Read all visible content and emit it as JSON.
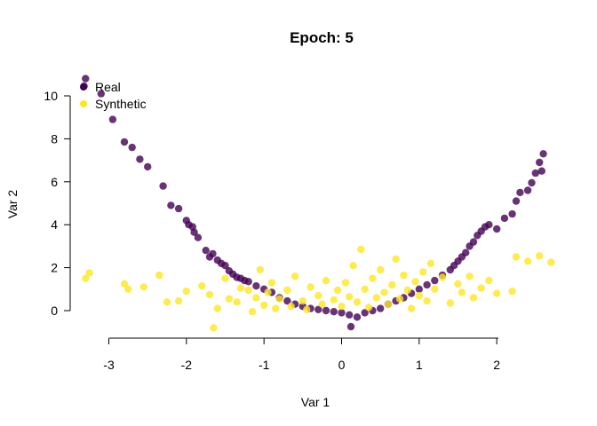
{
  "chart_data": {
    "type": "scatter",
    "title": "Epoch: 5",
    "xlabel": "Var 1",
    "ylabel": "Var 2",
    "xlim": [
      -3.35,
      2.75
    ],
    "ylim": [
      -1.15,
      10.85
    ],
    "x_ticks": [
      -3,
      -2,
      -1,
      0,
      1,
      2
    ],
    "y_ticks": [
      0,
      2,
      4,
      6,
      8,
      10
    ],
    "grid": false,
    "legend_position": "top-left",
    "series": [
      {
        "name": "Real",
        "color": "#440154",
        "points": [
          [
            -3.3,
            10.8
          ],
          [
            -3.32,
            10.45
          ],
          [
            -3.1,
            10.1
          ],
          [
            -2.95,
            8.9
          ],
          [
            -2.8,
            7.85
          ],
          [
            -2.7,
            7.6
          ],
          [
            -2.6,
            7.05
          ],
          [
            -2.5,
            6.7
          ],
          [
            -2.3,
            5.8
          ],
          [
            -2.2,
            4.9
          ],
          [
            -2.1,
            4.75
          ],
          [
            -2.0,
            4.2
          ],
          [
            -1.97,
            4.0
          ],
          [
            -1.92,
            3.9
          ],
          [
            -1.9,
            3.65
          ],
          [
            -1.85,
            3.4
          ],
          [
            -1.75,
            2.8
          ],
          [
            -1.7,
            2.5
          ],
          [
            -1.66,
            2.65
          ],
          [
            -1.6,
            2.35
          ],
          [
            -1.55,
            2.2
          ],
          [
            -1.5,
            2.1
          ],
          [
            -1.45,
            1.85
          ],
          [
            -1.4,
            1.7
          ],
          [
            -1.35,
            1.55
          ],
          [
            -1.3,
            1.5
          ],
          [
            -1.25,
            1.4
          ],
          [
            -1.2,
            1.35
          ],
          [
            -1.1,
            1.15
          ],
          [
            -1.0,
            1.0
          ],
          [
            -0.9,
            0.85
          ],
          [
            -0.8,
            0.6
          ],
          [
            -0.7,
            0.45
          ],
          [
            -0.6,
            0.3
          ],
          [
            -0.5,
            0.2
          ],
          [
            -0.4,
            0.1
          ],
          [
            -0.3,
            0.05
          ],
          [
            -0.2,
            0.0
          ],
          [
            -0.1,
            -0.05
          ],
          [
            0.0,
            -0.1
          ],
          [
            0.1,
            -0.2
          ],
          [
            0.12,
            -0.75
          ],
          [
            0.2,
            -0.3
          ],
          [
            0.3,
            -0.1
          ],
          [
            0.4,
            0.0
          ],
          [
            0.5,
            0.1
          ],
          [
            0.6,
            0.3
          ],
          [
            0.7,
            0.45
          ],
          [
            0.8,
            0.6
          ],
          [
            0.9,
            0.8
          ],
          [
            1.0,
            1.0
          ],
          [
            1.1,
            1.2
          ],
          [
            1.2,
            1.4
          ],
          [
            1.3,
            1.65
          ],
          [
            1.4,
            1.9
          ],
          [
            1.45,
            2.1
          ],
          [
            1.5,
            2.3
          ],
          [
            1.55,
            2.5
          ],
          [
            1.6,
            2.7
          ],
          [
            1.65,
            3.0
          ],
          [
            1.7,
            3.2
          ],
          [
            1.75,
            3.5
          ],
          [
            1.8,
            3.7
          ],
          [
            1.85,
            3.9
          ],
          [
            1.9,
            4.0
          ],
          [
            2.0,
            3.8
          ],
          [
            2.1,
            4.3
          ],
          [
            2.2,
            4.5
          ],
          [
            2.25,
            5.1
          ],
          [
            2.3,
            5.5
          ],
          [
            2.4,
            5.6
          ],
          [
            2.45,
            5.95
          ],
          [
            2.5,
            6.4
          ],
          [
            2.55,
            6.9
          ],
          [
            2.6,
            7.3
          ],
          [
            2.58,
            6.5
          ]
        ]
      },
      {
        "name": "Synthetic",
        "color": "#FDE725",
        "points": [
          [
            -3.3,
            1.5
          ],
          [
            -3.25,
            1.75
          ],
          [
            -2.8,
            1.25
          ],
          [
            -2.75,
            1.0
          ],
          [
            -2.55,
            1.1
          ],
          [
            -2.35,
            1.65
          ],
          [
            -2.25,
            0.4
          ],
          [
            -2.1,
            0.45
          ],
          [
            -2.0,
            0.9
          ],
          [
            -1.8,
            1.15
          ],
          [
            -1.7,
            0.75
          ],
          [
            -1.65,
            -0.8
          ],
          [
            -1.6,
            0.1
          ],
          [
            -1.5,
            1.5
          ],
          [
            -1.45,
            0.55
          ],
          [
            -1.35,
            0.4
          ],
          [
            -1.3,
            1.05
          ],
          [
            -1.2,
            0.95
          ],
          [
            -1.15,
            -0.05
          ],
          [
            -1.1,
            0.6
          ],
          [
            -1.05,
            1.9
          ],
          [
            -1.0,
            0.25
          ],
          [
            -0.95,
            0.85
          ],
          [
            -0.9,
            1.3
          ],
          [
            -0.85,
            0.1
          ],
          [
            -0.8,
            0.55
          ],
          [
            -0.7,
            0.95
          ],
          [
            -0.65,
            0.2
          ],
          [
            -0.6,
            1.6
          ],
          [
            -0.5,
            0.45
          ],
          [
            -0.45,
            0.05
          ],
          [
            -0.4,
            1.1
          ],
          [
            -0.3,
            0.7
          ],
          [
            -0.25,
            0.3
          ],
          [
            -0.2,
            1.4
          ],
          [
            -0.1,
            0.5
          ],
          [
            -0.05,
            0.95
          ],
          [
            0.0,
            0.2
          ],
          [
            0.05,
            1.3
          ],
          [
            0.1,
            0.65
          ],
          [
            0.15,
            2.1
          ],
          [
            0.2,
            0.4
          ],
          [
            0.25,
            2.85
          ],
          [
            0.3,
            1.0
          ],
          [
            0.35,
            0.15
          ],
          [
            0.4,
            1.5
          ],
          [
            0.45,
            0.6
          ],
          [
            0.5,
            1.9
          ],
          [
            0.55,
            0.85
          ],
          [
            0.6,
            0.3
          ],
          [
            0.65,
            1.2
          ],
          [
            0.7,
            2.4
          ],
          [
            0.75,
            0.55
          ],
          [
            0.8,
            1.65
          ],
          [
            0.85,
            0.95
          ],
          [
            0.9,
            0.1
          ],
          [
            0.95,
            1.35
          ],
          [
            1.0,
            0.7
          ],
          [
            1.05,
            1.8
          ],
          [
            1.1,
            0.45
          ],
          [
            1.15,
            2.2
          ],
          [
            1.2,
            1.0
          ],
          [
            1.3,
            1.55
          ],
          [
            1.4,
            0.35
          ],
          [
            1.5,
            1.25
          ],
          [
            1.55,
            0.85
          ],
          [
            1.65,
            1.6
          ],
          [
            1.7,
            0.6
          ],
          [
            1.8,
            1.05
          ],
          [
            1.9,
            1.4
          ],
          [
            2.0,
            0.8
          ],
          [
            2.2,
            0.9
          ],
          [
            2.25,
            2.5
          ],
          [
            2.4,
            2.3
          ],
          [
            2.55,
            2.55
          ],
          [
            2.7,
            2.25
          ]
        ]
      }
    ]
  }
}
